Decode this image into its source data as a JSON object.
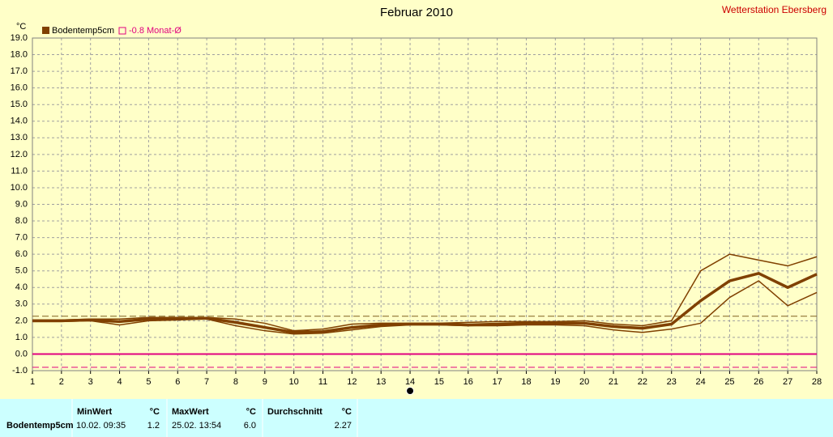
{
  "chart_data": {
    "type": "line",
    "title": "Februar 2010",
    "station": "Wetterstation Ebersberg",
    "y_unit": "°C",
    "x": [
      1,
      2,
      3,
      4,
      5,
      6,
      7,
      8,
      9,
      10,
      11,
      12,
      13,
      14,
      15,
      16,
      17,
      18,
      19,
      20,
      21,
      22,
      23,
      24,
      25,
      26,
      27,
      28
    ],
    "xlim": [
      1,
      28
    ],
    "xticks": [
      1,
      2,
      3,
      4,
      5,
      6,
      7,
      8,
      9,
      10,
      11,
      12,
      13,
      14,
      15,
      16,
      17,
      18,
      19,
      20,
      21,
      22,
      23,
      24,
      25,
      26,
      27,
      28
    ],
    "ylim": [
      -1,
      19
    ],
    "yticks": [
      {
        "value": -1,
        "label": "-1.0"
      },
      {
        "value": 0,
        "label": "0.0"
      },
      {
        "value": 1,
        "label": "1.0"
      },
      {
        "value": 2,
        "label": "2.0"
      },
      {
        "value": 3,
        "label": "3.0"
      },
      {
        "value": 4,
        "label": "4.0"
      },
      {
        "value": 5,
        "label": "5.0"
      },
      {
        "value": 6,
        "label": "6.0"
      },
      {
        "value": 7,
        "label": "7.0"
      },
      {
        "value": 8,
        "label": "8.0"
      },
      {
        "value": 9,
        "label": "9.0"
      },
      {
        "value": 10,
        "label": "10.0"
      },
      {
        "value": 11,
        "label": "11.0"
      },
      {
        "value": 12,
        "label": "12.0"
      },
      {
        "value": 13,
        "label": "13.0"
      },
      {
        "value": 14,
        "label": "14.0"
      },
      {
        "value": 15,
        "label": "15.0"
      },
      {
        "value": 16,
        "label": "16.0"
      },
      {
        "value": 17,
        "label": "17.0"
      },
      {
        "value": 18,
        "label": "18.0"
      },
      {
        "value": 19,
        "label": "19.0"
      }
    ],
    "grid": true,
    "series": [
      {
        "color": "#804000",
        "width": 1.5,
        "values": [
          2.05,
          2.05,
          2.1,
          2.1,
          2.2,
          2.2,
          2.2,
          2.1,
          1.85,
          1.4,
          1.5,
          1.8,
          1.85,
          1.85,
          1.85,
          1.9,
          1.95,
          1.95,
          1.95,
          2.0,
          1.8,
          1.7,
          2.0,
          5.0,
          6.0,
          5.65,
          5.3,
          5.85
        ]
      },
      {
        "name": "Bodentemp5cm",
        "color": "#804000",
        "width": 3.5,
        "values": [
          2.0,
          2.0,
          2.05,
          1.95,
          2.1,
          2.15,
          2.15,
          1.9,
          1.6,
          1.3,
          1.35,
          1.6,
          1.75,
          1.8,
          1.8,
          1.75,
          1.8,
          1.85,
          1.85,
          1.85,
          1.65,
          1.55,
          1.8,
          3.2,
          4.4,
          4.85,
          4.0,
          4.8
        ]
      },
      {
        "color": "#804000",
        "width": 1.5,
        "values": [
          1.95,
          1.95,
          2.0,
          1.75,
          2.0,
          2.05,
          2.1,
          1.7,
          1.4,
          1.2,
          1.25,
          1.45,
          1.65,
          1.75,
          1.75,
          1.7,
          1.7,
          1.75,
          1.75,
          1.7,
          1.45,
          1.3,
          1.5,
          1.85,
          3.4,
          4.4,
          2.9,
          3.7
        ]
      }
    ],
    "reference_lines": [
      {
        "value": 2.27,
        "color": "#806020",
        "dashed": true
      },
      {
        "value": 0,
        "color": "#e0007f",
        "dashed": false
      },
      {
        "value": -0.8,
        "label": "-0.8 Monat-Ø",
        "color": "#e0007f",
        "dashed": true
      }
    ],
    "cursor_x": 14
  },
  "table": {
    "headers": [
      "MinWert",
      "°C",
      "MaxWert",
      "°C",
      "Durchschnitt",
      "°C"
    ],
    "rows": [
      [
        "Bodentemp5cm",
        "10.02.  09:35",
        "1.2",
        "25.02.  13:54",
        "6.0",
        "2.27"
      ]
    ]
  }
}
